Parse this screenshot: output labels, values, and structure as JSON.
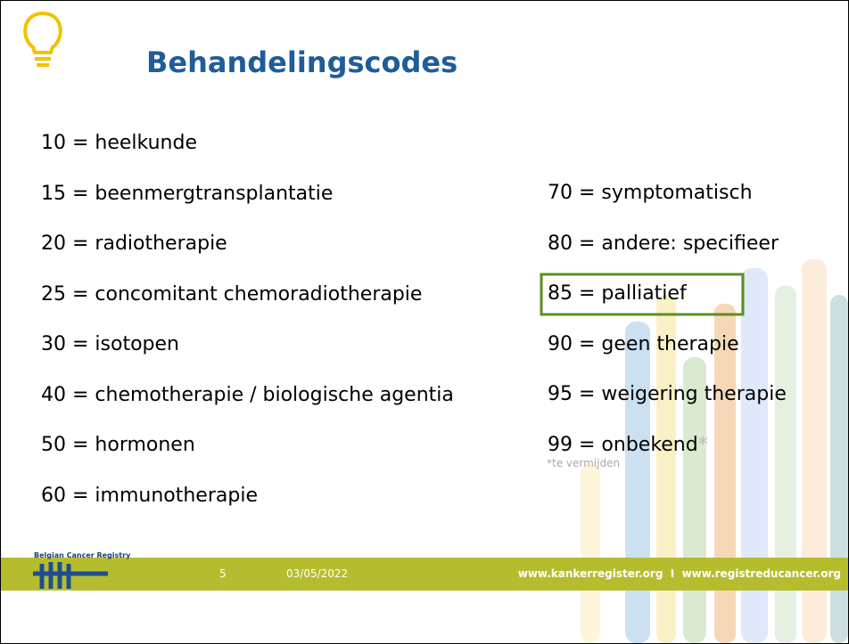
{
  "header": {
    "title": "Behandelingscodes"
  },
  "left_list": [
    "10 = heelkunde",
    "15 = beenmergtransplantatie",
    "20 = radiotherapie",
    "25 = concomitant chemoradiotherapie",
    "30 = isotopen",
    "40 = chemotherapie / biologische agentia",
    "50 = hormonen",
    "60 = immunotherapie"
  ],
  "right_list": [
    "70 = symptomatisch",
    "80 = andere: specifieer",
    "85 = palliatief",
    "90 = geen therapie",
    "95 = weigering therapie",
    "99 = onbekend"
  ],
  "asterisk": "*",
  "footnote": "*te vermijden",
  "footer": {
    "logo_text": "Belgian Cancer Registry",
    "slide_number": "5",
    "date": "03/05/2022",
    "url": "www.kankerregister.org  I  www.registreducancer.org"
  }
}
